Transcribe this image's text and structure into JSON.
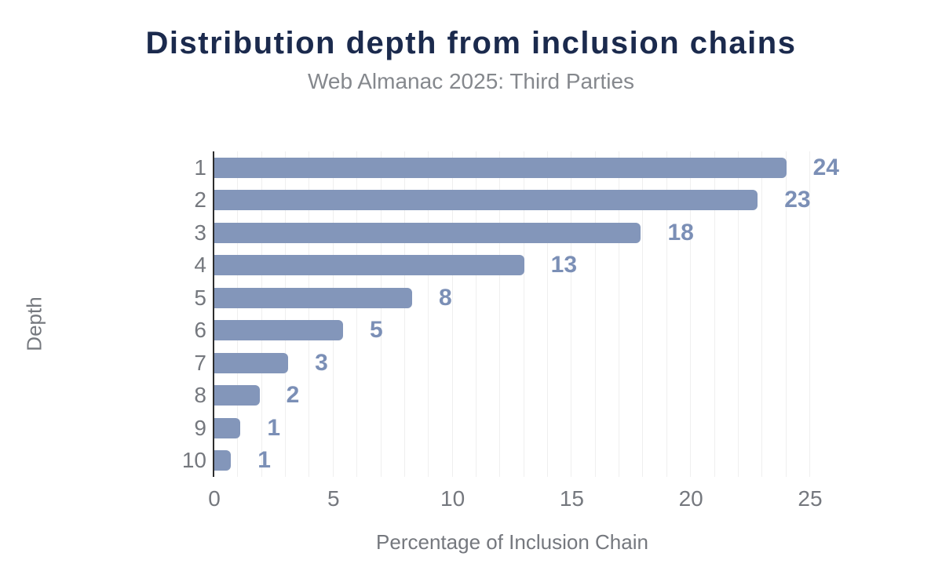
{
  "title": "Distribution depth from inclusion chains",
  "subtitle": "Web Almanac 2025: Third Parties",
  "colors": {
    "background": "#ffffff",
    "title": "#1b2a4d",
    "subtitle": "#85888d",
    "bar": "#8396ba",
    "value_label": "#7b8fb6",
    "axis_text": "#75787e",
    "axis_line": "#2d2d2d",
    "gridline": "#efefef"
  },
  "chart_data": {
    "type": "bar",
    "orientation": "horizontal",
    "title": "Distribution depth from inclusion chains",
    "subtitle": "Web Almanac 2025: Third Parties",
    "xlabel": "Percentage of Inclusion Chain",
    "ylabel": "Depth",
    "categories": [
      "1",
      "2",
      "3",
      "4",
      "5",
      "6",
      "7",
      "8",
      "9",
      "10"
    ],
    "values": [
      24.0,
      22.8,
      17.9,
      13.0,
      8.3,
      5.4,
      3.1,
      1.9,
      1.1,
      0.7
    ],
    "value_labels": [
      "24",
      "23",
      "18",
      "13",
      "8",
      "5",
      "3",
      "2",
      "1",
      "1"
    ],
    "xlim": [
      0,
      25
    ],
    "x_ticks": [
      0,
      5,
      10,
      15,
      20,
      25
    ],
    "minor_grid_step": 1,
    "grid": "vertical",
    "legend": "none"
  }
}
